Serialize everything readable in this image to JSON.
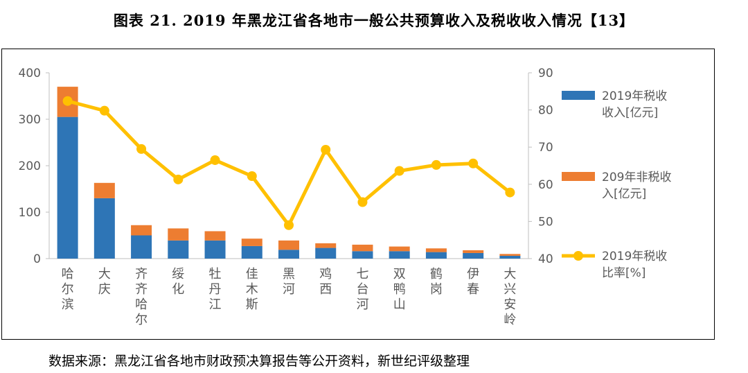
{
  "figure": {
    "title": "图表 21. 2019 年黑龙江省各地市一般公共预算收入及税收收入情况【13】",
    "source": "数据来源：黑龙江省各地市财政预决算报告等公开资料，新世纪评级整理"
  },
  "colors": {
    "tax": "#2E75B6",
    "nontax": "#ED7D31",
    "ratio": "#FFC000",
    "axis_text": "#595959",
    "axis_line": "#BFBFBF"
  },
  "chart_data": {
    "type": "bar",
    "stacked": true,
    "categories": [
      "哈尔滨",
      "大庆",
      "齐齐哈尔",
      "绥化",
      "牡丹江",
      "佳木斯",
      "黑河",
      "鸡西",
      "七台河",
      "双鸭山",
      "鹤岗",
      "伊春",
      "大兴安岭"
    ],
    "series": [
      {
        "name": "2019年税收收入[亿元]",
        "kind": "bar",
        "axis": "left",
        "values": [
          305,
          130,
          50,
          39,
          39,
          27,
          19,
          23,
          16,
          16,
          14,
          12,
          6
        ]
      },
      {
        "name": "209年非税收入[亿元]",
        "kind": "bar",
        "axis": "left",
        "values": [
          65,
          33,
          22,
          26,
          20,
          16,
          20,
          10,
          14,
          10,
          8,
          6,
          4
        ]
      },
      {
        "name": "2019年税收比率[%]",
        "kind": "line",
        "axis": "right",
        "values": [
          82.4,
          79.8,
          69.5,
          61.3,
          66.5,
          62.2,
          49.0,
          69.3,
          55.2,
          63.6,
          65.2,
          65.6,
          57.8
        ]
      }
    ],
    "ylim": [
      0,
      400
    ],
    "yticks": [
      0,
      100,
      200,
      300,
      400
    ],
    "y2lim": [
      40,
      90
    ],
    "y2ticks": [
      40,
      50,
      60,
      70,
      80,
      90
    ],
    "xlabel": "",
    "ylabel": "",
    "y2label": "",
    "grid": false,
    "legend_position": "right"
  }
}
